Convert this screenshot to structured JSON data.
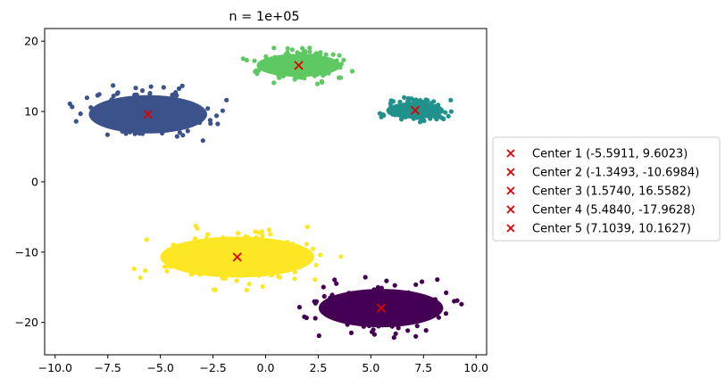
{
  "chart_data": {
    "type": "scatter",
    "title": "n = 1e+05",
    "xlabel": "",
    "ylabel": "",
    "xlim": [
      -10.5,
      10.5
    ],
    "ylim": [
      -24.6,
      21.8
    ],
    "xticks": [
      -10.0,
      -7.5,
      -5.0,
      -2.5,
      0.0,
      2.5,
      5.0,
      7.5,
      10.0
    ],
    "xtick_labels": [
      "−10.0",
      "−7.5",
      "−5.0",
      "−2.5",
      "0.0",
      "2.5",
      "5.0",
      "7.5",
      "10.0"
    ],
    "yticks": [
      -20,
      -10,
      0,
      10,
      20
    ],
    "ytick_labels": [
      "−20",
      "−10",
      "0",
      "10",
      "20"
    ],
    "grid": false,
    "legend_position": "outside-right",
    "clusters": [
      {
        "cluster": 1,
        "color": "#3b528b",
        "x_center": -5.59,
        "y_center": 9.6,
        "x_min": -9.6,
        "x_max": -2.0,
        "y_min": 5.7,
        "y_max": 14.5
      },
      {
        "cluster": 2,
        "color": "#fde725",
        "x_center": -1.35,
        "y_center": -10.7,
        "x_min": -6.4,
        "x_max": 3.5,
        "y_min": -15.4,
        "y_max": -6.0
      },
      {
        "cluster": 3,
        "color": "#5ec962",
        "x_center": 1.57,
        "y_center": 16.56,
        "x_min": -1.1,
        "x_max": 4.3,
        "y_min": 14.2,
        "y_max": 19.5
      },
      {
        "cluster": 4,
        "color": "#440154",
        "x_center": 5.48,
        "y_center": -17.96,
        "x_min": 1.5,
        "x_max": 9.5,
        "y_min": -22.4,
        "y_max": -13.6
      },
      {
        "cluster": 5,
        "color": "#21918c",
        "x_center": 7.1,
        "y_center": 10.16,
        "x_min": 5.3,
        "x_max": 9.0,
        "y_min": 8.3,
        "y_max": 12.1
      }
    ],
    "centers": [
      {
        "label": "Center 1 (-5.5911, 9.6023)",
        "x": -5.5911,
        "y": 9.6023
      },
      {
        "label": "Center 2 (-1.3493, -10.6984)",
        "x": -1.3493,
        "y": -10.6984
      },
      {
        "label": "Center 3 (1.5740, 16.5582)",
        "x": 1.574,
        "y": 16.5582
      },
      {
        "label": "Center 4 (5.4840, -17.9628)",
        "x": 5.484,
        "y": -17.9628
      },
      {
        "label": "Center 5 (7.1039, 10.1627)",
        "x": 7.1039,
        "y": 10.1627
      }
    ],
    "center_marker_color": "#e00000"
  }
}
